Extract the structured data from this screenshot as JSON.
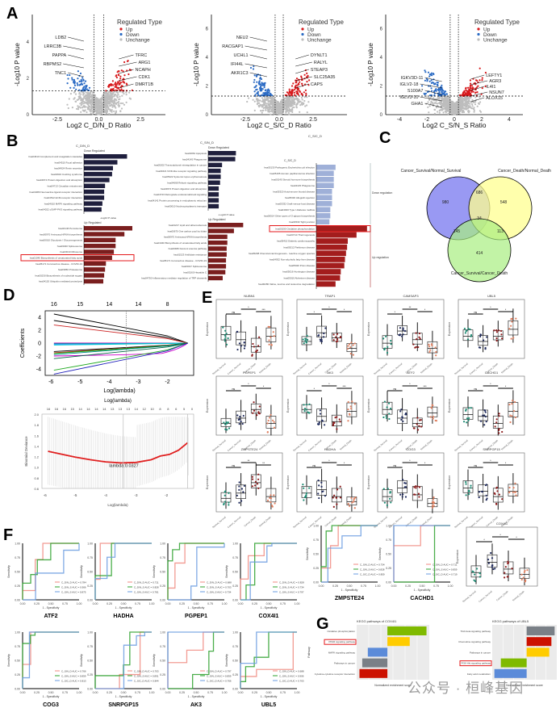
{
  "panels": {
    "A": "A",
    "B": "B",
    "C": "C",
    "D": "D",
    "E": "E",
    "F": "F",
    "G": "G"
  },
  "colors": {
    "up": "#d7191c",
    "down": "#2b6bc4",
    "unchange": "#bdbdbd",
    "bar_down_dark": "#1f1f3d",
    "bar_up": "#7a1e1e",
    "bar_down_light": "#9fb0d8",
    "bar_up_light": "#a31d1d",
    "highlight": "#e41a1c",
    "venn_a": "#8080f0",
    "venn_b": "#ffff90",
    "venn_c": "#a8ee80",
    "roc_red": "#f08a80",
    "roc_green": "#2ca02c",
    "roc_blue": "#6a9be0",
    "box_green": "#1b8a72",
    "box_navy": "#1f2a5c",
    "box_darkred": "#8b1a1a",
    "box_salmon": "#e08060"
  },
  "volcano": [
    {
      "xlabel": "Log2 C_D/N_D Ratio",
      "ylabel": "-Log10 P value",
      "xticks": [
        "-2.5",
        "0.0",
        "2.5"
      ],
      "yticks": [
        "0",
        "2",
        "4"
      ],
      "legend_title": "Regulated Type",
      "legend": [
        "Up",
        "Down",
        "Unchange"
      ],
      "labels_left": [
        "LDB2",
        "LRRC3B",
        "PAPPA",
        "RBPMS2",
        "TNC1"
      ],
      "labels_right": [
        "TFRC",
        "ARG1",
        "NCAPH",
        "CDK1",
        "DMRT1B"
      ]
    },
    {
      "xlabel": "Log2 C_S/C_D Ratio",
      "ylabel": "-Log10 P value",
      "xticks": [
        "-2.5",
        "0.0",
        "2.5"
      ],
      "yticks": [
        "0",
        "2",
        "4",
        "6"
      ],
      "legend_title": "Regulated Type",
      "legend": [
        "Up",
        "Down",
        "Unchange"
      ],
      "labels_left": [
        "NEU2",
        "RACGAP1",
        "UCHL1",
        "IFI44L",
        "AKR1C3"
      ],
      "labels_right": [
        "DYNLT1",
        "RALYL",
        "STEAP3",
        "SLC25A35",
        "CAPS"
      ]
    },
    {
      "xlabel": "Log2 C_S/N_S Ratio",
      "ylabel": "-Log10 P value",
      "xticks": [
        "-4",
        "-2",
        "0",
        "2",
        "4"
      ],
      "yticks": [
        "0",
        "2",
        "4",
        "6"
      ],
      "legend_title": "Regulated Type",
      "legend": [
        "Up",
        "Down",
        "Unchange"
      ],
      "labels_left": [
        "IGKV3D-11",
        "IGLV2-18",
        "S100A7",
        "IGLV3-10",
        "GHA1"
      ],
      "labels_right": [
        "LEFTY1",
        "AGR3",
        "IL4I1",
        "NSUN7",
        "ALOX15"
      ]
    }
  ],
  "kegg_bars": [
    {
      "title": "C_D/N_D",
      "down_label": "Down Regulated",
      "up_label": "Up Regulated",
      "xlabel": "-Log10 P value",
      "down": [
        {
          "term": "hsa04610 Complement and coagulation cascades",
          "value": 4.9
        },
        {
          "term": "hsa04510 Focal adhesion",
          "value": 3.8
        },
        {
          "term": "hsa04924 Renin secretion",
          "value": 3.3
        },
        {
          "term": "hsa04934 Cushing syndrome",
          "value": 3.2
        },
        {
          "term": "hsa04974 Protein digestion and absorption",
          "value": 2.9
        },
        {
          "term": "hsa04713 Circadian entrainment",
          "value": 2.4
        },
        {
          "term": "hsa04080 Neuroactive ligand-receptor interaction",
          "value": 2.3
        },
        {
          "term": "hsa04512 ECM-receptor interaction",
          "value": 2.3
        },
        {
          "term": "hsa04010 MAPK signaling pathway",
          "value": 2.1
        },
        {
          "term": "hsa04022 cGMP-PKG signaling pathway",
          "value": 2.0
        }
      ],
      "up": [
        {
          "term": "hsa04146 Peroxisome",
          "value": 5.5
        },
        {
          "term": "hsa00970 Aminoacyl-tRNA biosynthesis",
          "value": 4.6
        },
        {
          "term": "hsa00010 Glycolysis / Gluconeogenesis",
          "value": 3.6
        },
        {
          "term": "hsa03040 Spliceosome",
          "value": 3.6
        },
        {
          "term": "hsa03010 Ribosome",
          "value": 3.4
        },
        {
          "term": "hsa01040 Biosynthesis of unsaturated fatty acids",
          "value": 3.2,
          "highlight": true
        },
        {
          "term": "hsa05171 Coronavirus disease - COVID-19",
          "value": 2.5
        },
        {
          "term": "hsa03050 Proteasome",
          "value": 2.4
        },
        {
          "term": "hsa00230 Biosynthesis of nucleotide sugars",
          "value": 2.3
        },
        {
          "term": "hsa04120 Ubiquitin mediated proteolysis",
          "value": 2.2
        }
      ]
    },
    {
      "title": "C_S/N_D",
      "down_label": "Down Regulated",
      "up_label": "Up Regulated",
      "xlabel": "-Log10 P value",
      "down": [
        {
          "term": "hsa04064 Apoptosis",
          "value": 4.2
        },
        {
          "term": "hsa04145 Phagosome",
          "value": 4.1
        },
        {
          "term": "hsa05202 Transcriptional misregulation in cancer",
          "value": 2.1
        },
        {
          "term": "hsa04621 NOD-like receptor signaling pathway",
          "value": 1.9
        },
        {
          "term": "hsa05322 Systemic lupus erythematosus",
          "value": 1.9
        },
        {
          "term": "hsa04668 Relaxin signaling pathway",
          "value": 1.8
        },
        {
          "term": "hsa04974 Protein digestion and absorption",
          "value": 1.6
        },
        {
          "term": "hsa04723 Retrograde endocannabinoid signaling",
          "value": 1.6
        },
        {
          "term": "hsa04141 Protein processing in endoplasmic reticulum",
          "value": 1.6
        },
        {
          "term": "hsa00010 Nucleocytoplasmic transport",
          "value": 1.6
        }
      ],
      "up": [
        {
          "term": "hsa04217 Lipid and atherosclerosis",
          "value": 5.3
        },
        {
          "term": "hsa00670 One carbon pool by folate",
          "value": 3.9
        },
        {
          "term": "hsa00970 Aminoacyl-tRNA biosynthesis",
          "value": 2.9
        },
        {
          "term": "hsa01040 Biosynthesis of unsaturated fatty acids",
          "value": 2.9
        },
        {
          "term": "hsa00480 Fanconi anemia pathway",
          "value": 2.8
        },
        {
          "term": "hsa01523 Antifolate resistance",
          "value": 2.8
        },
        {
          "term": "hsa05171 Coronavirus disease - COVID-19",
          "value": 2.7
        },
        {
          "term": "hsa03017 Spliceosome",
          "value": 2.7
        },
        {
          "term": "hsa05160 Hepatitis C",
          "value": 2.6
        },
        {
          "term": "hsa04750 Inflammatory mediator regulation of TRP channels",
          "value": 2.2
        }
      ]
    },
    {
      "title": "C_S/C_D",
      "down_label": "Down regulation",
      "up_label": "Up regulation",
      "xlabel": "",
      "down": [
        {
          "term": "hsa05130 Pathogenic Escherichia coli infection",
          "value": 2.2
        },
        {
          "term": "hsa05165 Human papillomavirus infection",
          "value": 2.0
        },
        {
          "term": "hsa00140 Steroid hormone biosynthesis",
          "value": 2.0
        },
        {
          "term": "hsa04145 Phagosome",
          "value": 2.0
        },
        {
          "term": "hsa05320 Autoimmune thyroid disease",
          "value": 1.8
        },
        {
          "term": "hsa05330 Allograft rejection",
          "value": 1.8
        },
        {
          "term": "hsa05332 Graft-versus-host disease",
          "value": 1.8
        },
        {
          "term": "hsa04940 Type I diabetes mellitus",
          "value": 1.6
        },
        {
          "term": "hsa00514 Other types of O-glycan biosynthesis",
          "value": 1.6
        },
        {
          "term": "hsa04530 Tight junction",
          "value": 1.5
        }
      ],
      "up": [
        {
          "term": "hsa00190 Oxidative phosphorylation",
          "value": 14.5,
          "highlight": true
        },
        {
          "term": "hsa04714 Thermogenesis",
          "value": 11.5
        },
        {
          "term": "hsa05415 Diabetic cardiomyopathy",
          "value": 9.0
        },
        {
          "term": "hsa05012 Parkinson disease",
          "value": 8.8
        },
        {
          "term": "hsa05208 Chemical carcinogenesis - reactive oxygen species",
          "value": 8.5
        },
        {
          "term": "hsa04932 Non-alcoholic fatty liver disease",
          "value": 8.2
        },
        {
          "term": "hsa05020 Prion disease",
          "value": 8.0
        },
        {
          "term": "hsa05016 Huntington disease",
          "value": 7.0
        },
        {
          "term": "hsa05010 Alzheimer disease",
          "value": 6.8
        },
        {
          "term": "hsa00280 Valine, leucine and isoleucine degradation",
          "value": 5.5
        }
      ]
    }
  ],
  "venn": {
    "sets": [
      "Cancer_Survival/Normal_Survival",
      "Cancer_Death/Normal_Death",
      "Cancer_Survival/Cancer_Death"
    ],
    "regions": {
      "a_only": "980",
      "b_only": "548",
      "c_only": "414",
      "ab": "686",
      "ac": "145",
      "bc": "113",
      "abc": "34"
    }
  },
  "lasso": {
    "coef_top_ticks": [
      "16",
      "15",
      "14",
      "14",
      "8"
    ],
    "coef_xticks": [
      "-6",
      "-5",
      "-4",
      "-3",
      "-2"
    ],
    "coef_yticks": [
      "-4",
      "-2",
      "0",
      "2",
      "4"
    ],
    "coef_ylabel": "Coefficients",
    "coef_xlabel": "Log(lambda)",
    "dev_top_ticks": [
      "16",
      "16",
      "16",
      "15",
      "14",
      "14",
      "14",
      "14",
      "13",
      "13",
      "13",
      "14",
      "12",
      "10",
      "8",
      "8",
      "6",
      "5",
      "0"
    ],
    "dev_xticks": [
      "-6",
      "-5",
      "-4",
      "-3",
      "-2"
    ],
    "dev_yticks": [
      "0.6",
      "0.8",
      "1.0",
      "1.2",
      "1.4",
      "1.6",
      "1.8",
      "2.0"
    ],
    "dev_ylabel": "Binomial Deviance",
    "dev_xlabel": "Log(lambda)",
    "dev_title": "Log(lambda)",
    "annotation": "lambda:0.0327",
    "vline_loglambda": -3.42,
    "deviance_curve": [
      [
        -5.9,
        1.3
      ],
      [
        -5.5,
        1.25
      ],
      [
        -5,
        1.19
      ],
      [
        -4.5,
        1.14
      ],
      [
        -4,
        1.1
      ],
      [
        -3.5,
        1.08
      ],
      [
        -3,
        1.09
      ],
      [
        -2.5,
        1.14
      ],
      [
        -2.2,
        1.21
      ],
      [
        -1.9,
        1.24
      ],
      [
        -1.6,
        1.32
      ],
      [
        -1.3,
        1.46
      ]
    ]
  },
  "boxplots": {
    "ylabel": "Expression",
    "groups": [
      "Normal_Survival",
      "Cancer_Survival",
      "Cancer_Death",
      "Normal_Death"
    ],
    "genes": [
      {
        "name": "NUBN1",
        "sig": [
          "ns",
          "*",
          "***"
        ]
      },
      {
        "name": "TRAP1",
        "sig": [
          "*",
          "*",
          "*"
        ]
      },
      {
        "name": "CAMSAP3",
        "sig": [
          "*",
          "**",
          "*"
        ]
      },
      {
        "name": "UBL5",
        "sig": [
          "ns",
          "*",
          "*"
        ]
      },
      {
        "name": "PGPEP1",
        "sig": [
          "ns",
          "*",
          "*"
        ]
      },
      {
        "name": "AK3",
        "sig": [
          "*",
          "*",
          "***"
        ]
      },
      {
        "name": "ATF2",
        "sig": [
          "ns",
          "*",
          "***"
        ]
      },
      {
        "name": "CACHD1",
        "sig": [
          "ns",
          "*",
          "*"
        ]
      },
      {
        "name": "ZMPSTE24",
        "sig": [
          "ns",
          "**",
          "**"
        ]
      },
      {
        "name": "HADHA",
        "sig": [
          "ns",
          "*",
          "*"
        ]
      },
      {
        "name": "COG3",
        "sig": [
          "ns",
          "*",
          "*"
        ]
      },
      {
        "name": "SNRPGP15",
        "sig": [
          "ns",
          "*",
          "*"
        ]
      },
      {
        "name": "COX4I1",
        "sig": [
          "*",
          "*",
          "*"
        ]
      }
    ]
  },
  "roc": {
    "xlabel": "1 - Specificity",
    "ylabel": "Sensitivity",
    "ticks": [
      "0.00",
      "0.25",
      "0.50",
      "0.75",
      "1.00"
    ],
    "genes": [
      {
        "name": "ATF2",
        "legend": [
          "C_D/N_D AUC = 0.784",
          "C_D/N_S AUC = 0.906",
          "C_S/N_S AUC = 0.875"
        ]
      },
      {
        "name": "HADHA",
        "legend": [
          "C_D/N_D AUC = 0.711",
          "C_D/N_S AUC = 0.828",
          "C_S/N_S AUC = 0.781"
        ]
      },
      {
        "name": "PGPEP1",
        "legend": [
          "C_D/N_D AUC = 0.688",
          "C_D/N_S AUC = 0.703",
          "C_S/N_S AUC = 0.734"
        ]
      },
      {
        "name": "COX4I1",
        "legend": [
          "C_D/N_D AUC = 0.828",
          "C_D/N_S AUC = 0.734",
          "C_S/N_S AUC = 0.797"
        ]
      },
      {
        "name": "ZMPSTE24",
        "legend": [
          "C_S/N_D AUC = 0.734",
          "C_S/N_S AUC = 0.828",
          "C_S/C_D AUC = 0.859"
        ]
      },
      {
        "name": "CACHD1",
        "legend": [
          "C_S/N_D AUC = 0.711",
          "C_S/N_S AUC = 0.859",
          "C_S/C_D AUC = 0.719"
        ]
      },
      {
        "name": "COG3",
        "legend": [
          "C_S/N_D AUC = 0.766",
          "C_S/N_S AUC = 0.859",
          "C_S/C_D AUC = 0.813"
        ]
      },
      {
        "name": "SNRPGP15",
        "legend": [
          "C_S/N_D AUC = 0.703",
          "C_S/N_S AUC = 0.891",
          "C_S/C_D AUC = 0.844"
        ]
      },
      {
        "name": "AK3",
        "legend": [
          "C_S/N_D AUC = 0.797",
          "C_S/N_S AUC = 0.859",
          "C_S/C_D AUC = 0.766"
        ]
      },
      {
        "name": "UBL5",
        "legend": [
          "C_S/N_D AUC = 0.688",
          "C_S/N_S AUC = 0.906",
          "C_S/C_D AUC = 0.703"
        ]
      }
    ]
  },
  "gsea": [
    {
      "title": "KEGG pathways of COX4I1",
      "xlabel": "Normalized enrichment score",
      "ylabel": "Pathway",
      "bars": [
        {
          "term": "Oxidative phosphorylation",
          "value": 2.8,
          "color": "#7fba00"
        },
        {
          "term": "PPAR signaling pathway",
          "value": 1.6,
          "color": "#ffcc00",
          "highlight": true
        },
        {
          "term": "MAPK signaling pathway",
          "value": -1.4,
          "color": "#5b8bd9"
        },
        {
          "term": "Pathways in cancer",
          "value": -1.8,
          "color": "#7a8087"
        },
        {
          "term": "Cytokine-cytokine receptor interaction",
          "value": -2.0,
          "color": "#cc1100"
        }
      ],
      "xrange": [
        -2.2,
        3
      ]
    },
    {
      "title": "KEGG pathways of UBL5",
      "xlabel": "Normalized enrichment score",
      "ylabel": "",
      "bars": [
        {
          "term": "TGF-beta signaling pathway",
          "value": 2.6,
          "color": "#7a8087"
        },
        {
          "term": "Chemokine signaling pathway",
          "value": 2.3,
          "color": "#cc1100"
        },
        {
          "term": "Pathways in cancer",
          "value": 2.1,
          "color": "#ffcc00"
        },
        {
          "term": "PI3K-Akt signaling pathway",
          "value": -2.4,
          "color": "#7fba00",
          "highlight": true
        },
        {
          "term": "Fatty acid metabolism",
          "value": -3.0,
          "color": "#5b8bd9"
        }
      ],
      "xrange": [
        -3.2,
        2.8
      ]
    }
  ],
  "watermark": "公众号 · 桓峰基因"
}
